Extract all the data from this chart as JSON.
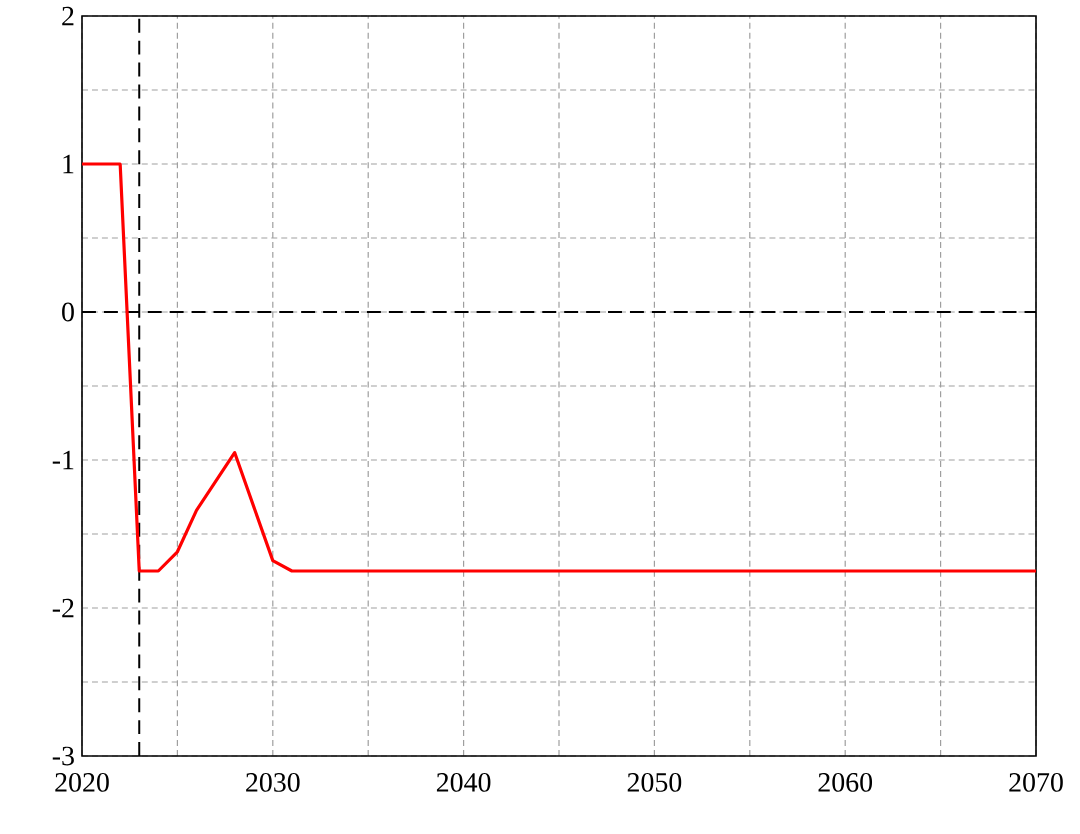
{
  "chart_data": {
    "type": "line",
    "x": [
      2020,
      2022,
      2023,
      2024,
      2025,
      2026,
      2028,
      2030,
      2031,
      2070
    ],
    "series": [
      {
        "color": "#ff0000",
        "values": [
          1,
          1,
          -1.75,
          -1.75,
          -1.62,
          -1.34,
          -0.95,
          -1.68,
          -1.75,
          -1.75
        ]
      }
    ],
    "xlim": [
      2020,
      2070
    ],
    "xticks": [
      2020,
      {
        "value": 2025,
        "label": null
      },
      2030,
      {
        "value": 2035,
        "label": null
      },
      2040,
      {
        "value": 2045,
        "label": null
      },
      2050,
      {
        "value": 2055,
        "label": null
      },
      2060,
      {
        "value": 2065,
        "label": null
      },
      2070
    ],
    "ylim": [
      -3,
      2
    ],
    "yticks": [
      -3,
      {
        "value": -2.5,
        "label": null
      },
      -2,
      {
        "value": -1.5,
        "label": null
      },
      -1,
      {
        "value": -0.5,
        "label": null
      },
      0,
      {
        "value": 0.5,
        "label": null
      },
      1,
      {
        "value": 1.5,
        "label": null
      },
      2
    ],
    "grid": true,
    "ref_lines": [
      {
        "axis": "x",
        "value": 2023,
        "color": "#000000",
        "line_style": "dashed"
      },
      {
        "axis": "y",
        "value": 0,
        "color": "#000000",
        "line_style": "dashed"
      }
    ]
  }
}
